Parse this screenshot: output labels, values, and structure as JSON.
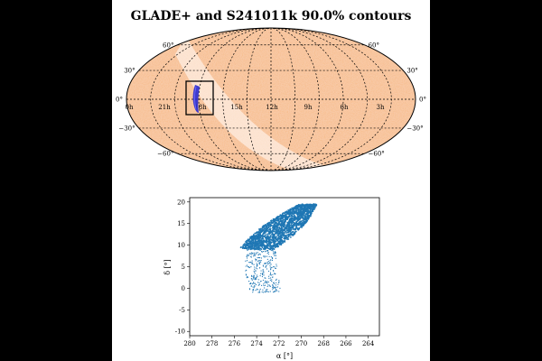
{
  "chart_data": [
    {
      "type": "heatmap",
      "projection": "mollweide",
      "title": "GLADE+ and S241011k 90.0% contours",
      "colormap": "orange density map",
      "meridian_labels": [
        "0h",
        "21h",
        "18h",
        "15h",
        "12h",
        "9h",
        "6h",
        "3h"
      ],
      "parallel_labels": {
        "left": [
          "60°",
          "30°",
          "0°",
          "−30°",
          "−60°"
        ],
        "right": [
          "60°",
          "30°",
          "0°",
          "−30°",
          "−60°"
        ]
      },
      "grid": true,
      "contour_color": "#2a2ad0",
      "box_color": "#000000"
    },
    {
      "type": "scatter",
      "xlabel": "α [°]",
      "ylabel": "δ [°]",
      "xlim": [
        280,
        263
      ],
      "ylim": [
        -11,
        21
      ],
      "xticks": [
        280,
        278,
        276,
        274,
        272,
        270,
        268,
        266,
        264
      ],
      "yticks": [
        -10,
        -5,
        0,
        5,
        10,
        15,
        20
      ],
      "point_color": "#1f77b4",
      "dense_region": {
        "approx_alpha_range": [
          269,
          275
        ],
        "approx_delta_range": [
          9,
          19.5
        ]
      },
      "sparse_region": {
        "approx_alpha_range": [
          272,
          275
        ],
        "approx_delta_range": [
          -1,
          9
        ]
      }
    }
  ]
}
